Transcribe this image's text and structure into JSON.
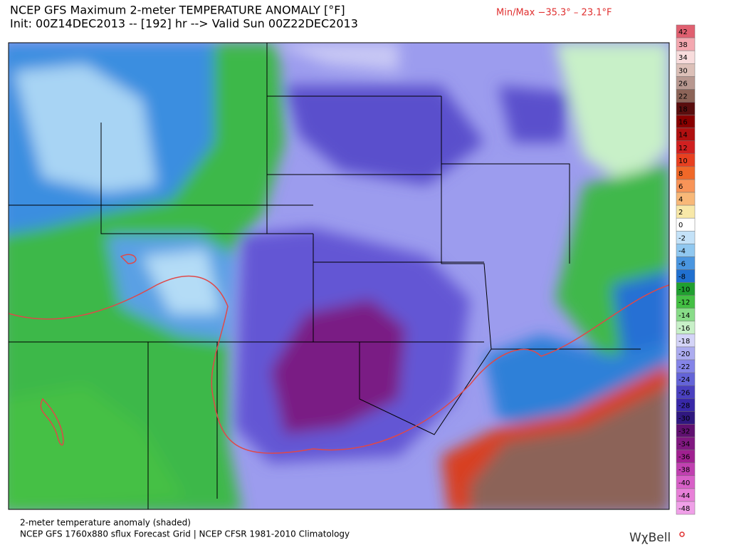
{
  "header": {
    "title": "NCEP GFS Maximum 2-meter TEMPERATURE ANOMALY [°F]",
    "subtitle": "Init: 00Z14DEC2013 -- [192] hr --> Valid Sun 00Z22DEC2013",
    "minmax": "Min/Max −35.3° –  23.1°F"
  },
  "colorbar": [
    {
      "value": 42,
      "color": "#e06070"
    },
    {
      "value": 38,
      "color": "#f4a8b0"
    },
    {
      "value": 34,
      "color": "#f8dcdc"
    },
    {
      "value": 30,
      "color": "#dcc0b8"
    },
    {
      "value": 26,
      "color": "#b89890"
    },
    {
      "value": 22,
      "color": "#8c6458"
    },
    {
      "value": 18,
      "color": "#5a0e0e"
    },
    {
      "value": 16,
      "color": "#880000"
    },
    {
      "value": 14,
      "color": "#b01010"
    },
    {
      "value": 12,
      "color": "#d02020"
    },
    {
      "value": 10,
      "color": "#e84020"
    },
    {
      "value": 8,
      "color": "#f06828"
    },
    {
      "value": 6,
      "color": "#f89458"
    },
    {
      "value": 4,
      "color": "#f8b878"
    },
    {
      "value": 2,
      "color": "#f8e8a8"
    },
    {
      "value": 0,
      "color": "#ffffff"
    },
    {
      "value": -2,
      "color": "#c4e2f8"
    },
    {
      "value": -4,
      "color": "#90c8f0"
    },
    {
      "value": -6,
      "color": "#4a96e0"
    },
    {
      "value": -8,
      "color": "#2070d0"
    },
    {
      "value": -10,
      "color": "#20a030"
    },
    {
      "value": -12,
      "color": "#44c044"
    },
    {
      "value": -14,
      "color": "#88dc88"
    },
    {
      "value": -16,
      "color": "#c8f0c8"
    },
    {
      "value": -18,
      "color": "#d4d4f8"
    },
    {
      "value": -20,
      "color": "#acacf0"
    },
    {
      "value": -22,
      "color": "#8484e8"
    },
    {
      "value": -24,
      "color": "#6464d8"
    },
    {
      "value": -26,
      "color": "#4a40c0"
    },
    {
      "value": -28,
      "color": "#3828a8"
    },
    {
      "value": -30,
      "color": "#301880"
    },
    {
      "value": -32,
      "color": "#601070"
    },
    {
      "value": -34,
      "color": "#801880"
    },
    {
      "value": -36,
      "color": "#a02090"
    },
    {
      "value": -38,
      "color": "#c040b0"
    },
    {
      "value": -40,
      "color": "#d860c8"
    },
    {
      "value": -44,
      "color": "#e880d8"
    },
    {
      "value": -48,
      "color": "#f0a0e8"
    }
  ],
  "footer": {
    "line1": "2-meter temperature anomaly (shaded)",
    "line2": "NCEP GFS 1760x880 sflux Forecast Grid | NCEP CFSR 1981-2010 Climatology",
    "logo": "WχBell"
  }
}
